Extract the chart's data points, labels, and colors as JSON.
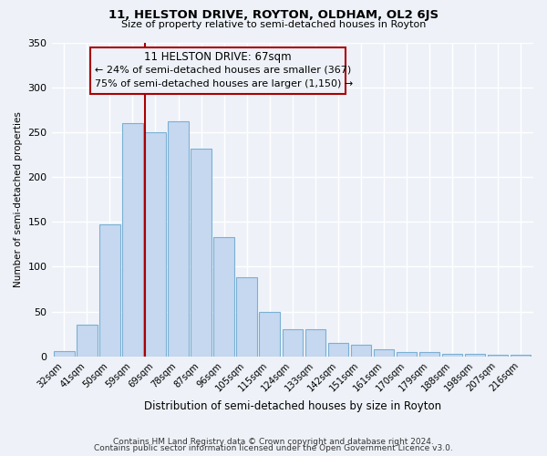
{
  "title": "11, HELSTON DRIVE, ROYTON, OLDHAM, OL2 6JS",
  "subtitle": "Size of property relative to semi-detached houses in Royton",
  "xlabel": "Distribution of semi-detached houses by size in Royton",
  "ylabel": "Number of semi-detached properties",
  "categories": [
    "32sqm",
    "41sqm",
    "50sqm",
    "59sqm",
    "69sqm",
    "78sqm",
    "87sqm",
    "96sqm",
    "105sqm",
    "115sqm",
    "124sqm",
    "133sqm",
    "142sqm",
    "151sqm",
    "161sqm",
    "170sqm",
    "179sqm",
    "188sqm",
    "198sqm",
    "207sqm",
    "216sqm"
  ],
  "values": [
    6,
    35,
    147,
    260,
    250,
    262,
    232,
    133,
    88,
    49,
    30,
    30,
    15,
    13,
    8,
    5,
    5,
    3,
    3,
    2,
    2
  ],
  "bar_color": "#c5d8f0",
  "bar_edge_color": "#7ab0d4",
  "marker_index": 4,
  "marker_color": "#aa0000",
  "annotation_title": "11 HELSTON DRIVE: 67sqm",
  "annotation_line1": "← 24% of semi-detached houses are smaller (367)",
  "annotation_line2": "75% of semi-detached houses are larger (1,150) →",
  "box_color": "#aa0000",
  "ylim": [
    0,
    350
  ],
  "yticks": [
    0,
    50,
    100,
    150,
    200,
    250,
    300,
    350
  ],
  "footer_line1": "Contains HM Land Registry data © Crown copyright and database right 2024.",
  "footer_line2": "Contains public sector information licensed under the Open Government Licence v3.0.",
  "background_color": "#eef2f8",
  "grid_color": "#ffffff"
}
